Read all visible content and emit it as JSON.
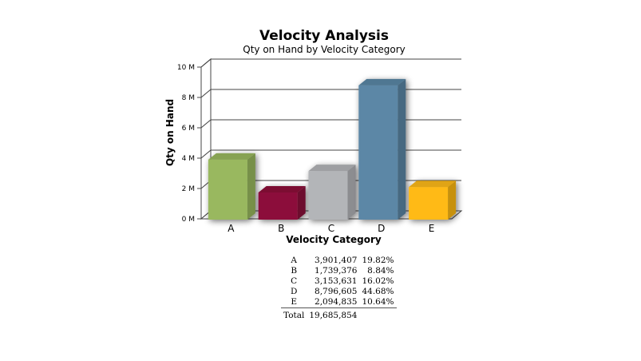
{
  "colors": {
    "A": "#99b85e",
    "B": "#8c0b3a",
    "C": "#b3b5b8",
    "D": "#5b87a6",
    "E": "#ffba14"
  },
  "chart_data": {
    "type": "bar",
    "title": "Velocity Analysis",
    "subtitle": "Qty on Hand by Velocity Category",
    "xlabel": "Velocity Category",
    "ylabel": "Qty on Hand",
    "categories": [
      "A",
      "B",
      "C",
      "D",
      "E"
    ],
    "values": [
      3901407,
      1739376,
      3153631,
      8796605,
      2094835
    ],
    "ylim": [
      0,
      10000000
    ],
    "yticks": [
      0,
      2000000,
      4000000,
      6000000,
      8000000,
      10000000
    ],
    "ytick_labels": [
      "0 M",
      "2 M",
      "4 M",
      "6 M",
      "8 M",
      "10 M"
    ],
    "grid": true,
    "style": "3d"
  },
  "summary": {
    "rows": [
      {
        "label": "A",
        "value": "3,901,407",
        "pct": "19.82%"
      },
      {
        "label": "B",
        "value": "1,739,376",
        "pct": "8.84%"
      },
      {
        "label": "C",
        "value": "3,153,631",
        "pct": "16.02%"
      },
      {
        "label": "D",
        "value": "8,796,605",
        "pct": "44.68%"
      },
      {
        "label": "E",
        "value": "2,094,835",
        "pct": "10.64%"
      }
    ],
    "total_label": "Total",
    "total_value": "19,685,854"
  }
}
